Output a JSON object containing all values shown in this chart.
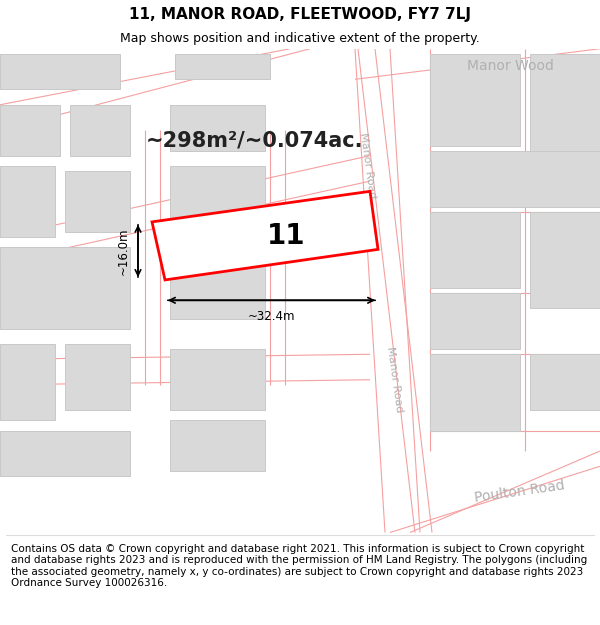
{
  "title": "11, MANOR ROAD, FLEETWOOD, FY7 7LJ",
  "subtitle": "Map shows position and indicative extent of the property.",
  "footer": "Contains OS data © Crown copyright and database right 2021. This information is subject to Crown copyright and database rights 2023 and is reproduced with the permission of HM Land Registry. The polygons (including the associated geometry, namely x, y co-ordinates) are subject to Crown copyright and database rights 2023 Ordnance Survey 100026316.",
  "area_text": "~298m²/~0.074ac.",
  "property_label": "11",
  "dim_width": "~32.4m",
  "dim_height": "~16.0m",
  "title_fontsize": 11,
  "subtitle_fontsize": 9,
  "footer_fontsize": 7.5,
  "building_fill": "#d9d9d9",
  "building_edge": "#c8c8c8",
  "road_outline_color": "#f5a0a0",
  "road_fill": "#ffffff",
  "map_bg": "#f5f4f2",
  "label_color": "#b0b0b0"
}
